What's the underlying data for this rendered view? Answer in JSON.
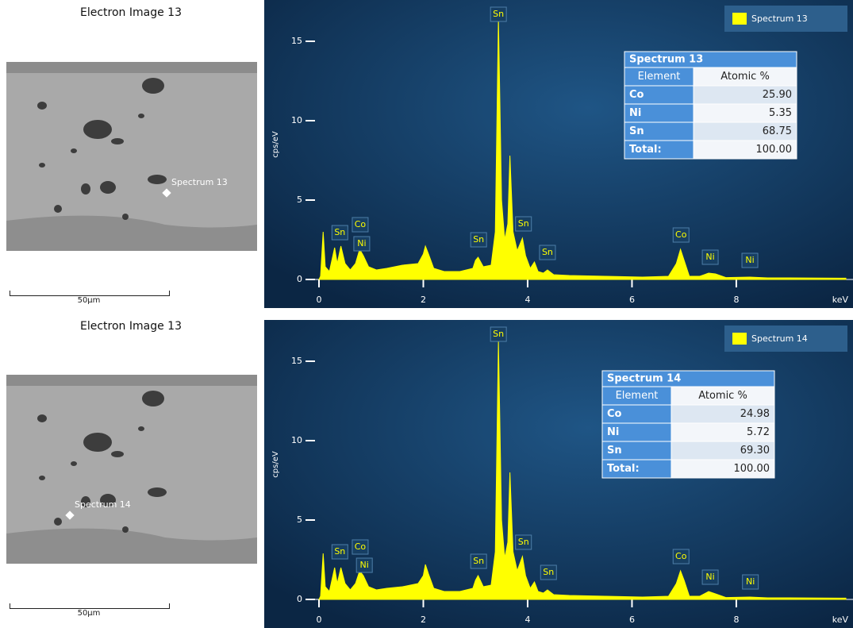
{
  "images": [
    {
      "title": "Electron Image 13",
      "scale": "50µm"
    },
    {
      "title": "Electron Image 13",
      "scale": "50µm"
    }
  ],
  "chart_data": [
    {
      "type": "area",
      "y_label": "cps/eV",
      "x_unit": "keV",
      "x": [
        0,
        0.03,
        0.08,
        0.12,
        0.2,
        0.3,
        0.35,
        0.42,
        0.5,
        0.6,
        0.7,
        0.78,
        0.85,
        0.95,
        1.1,
        1.3,
        1.6,
        1.9,
        2.0,
        2.04,
        2.1,
        2.2,
        2.4,
        2.7,
        2.95,
        3.0,
        3.05,
        3.15,
        3.3,
        3.38,
        3.44,
        3.5,
        3.56,
        3.62,
        3.66,
        3.72,
        3.8,
        3.9,
        3.96,
        4.05,
        4.13,
        4.2,
        4.3,
        4.38,
        4.5,
        4.8,
        5.5,
        6.2,
        6.7,
        6.85,
        6.93,
        7.0,
        7.1,
        7.3,
        7.47,
        7.6,
        7.8,
        8.26,
        8.6,
        9.0,
        10.0,
        10.1
      ],
      "series": [
        {
          "name": "Spectrum 13",
          "color": "#ffff00",
          "values": [
            0,
            0.2,
            3.0,
            0.8,
            0.5,
            2.0,
            1.0,
            2.1,
            1.0,
            0.6,
            1.0,
            1.9,
            1.5,
            0.8,
            0.6,
            0.7,
            0.9,
            1.0,
            1.6,
            2.1,
            1.6,
            0.7,
            0.5,
            0.5,
            0.7,
            1.2,
            1.4,
            0.8,
            0.9,
            3.0,
            16.5,
            5.0,
            2.5,
            3.5,
            7.8,
            3.0,
            1.8,
            2.6,
            1.5,
            0.7,
            1.1,
            0.5,
            0.4,
            0.6,
            0.3,
            0.25,
            0.2,
            0.15,
            0.2,
            1.0,
            1.9,
            1.2,
            0.2,
            0.2,
            0.4,
            0.35,
            0.12,
            0.15,
            0.1,
            0.1,
            0.08,
            0.08
          ]
        }
      ],
      "xlim": [
        0,
        10.1
      ],
      "ylim": [
        -1.8,
        17.6
      ],
      "xticks": [
        0,
        2,
        4,
        6,
        8
      ],
      "yticks": [
        0,
        5,
        10,
        15
      ],
      "annotations": [
        "Sn",
        "Sn",
        "Co",
        "Ni",
        "Sn",
        "Sn",
        "Sn",
        "Co",
        "Ni",
        "Ni"
      ],
      "table": {
        "header": [
          "Element",
          "Atomic %"
        ],
        "rows": [
          [
            "Co",
            "25.90"
          ],
          [
            "Ni",
            "5.35"
          ],
          [
            "Sn",
            "68.75"
          ],
          [
            "Total:",
            "100.00"
          ]
        ]
      }
    },
    {
      "type": "area",
      "y_label": "cps/eV",
      "x_unit": "keV",
      "x": [
        0,
        0.03,
        0.08,
        0.12,
        0.2,
        0.3,
        0.35,
        0.42,
        0.5,
        0.6,
        0.7,
        0.78,
        0.85,
        0.95,
        1.1,
        1.3,
        1.6,
        1.9,
        2.0,
        2.04,
        2.1,
        2.2,
        2.4,
        2.7,
        2.95,
        3.0,
        3.05,
        3.15,
        3.3,
        3.38,
        3.44,
        3.5,
        3.56,
        3.62,
        3.66,
        3.72,
        3.8,
        3.9,
        3.96,
        4.05,
        4.13,
        4.2,
        4.3,
        4.38,
        4.5,
        4.8,
        5.5,
        6.2,
        6.7,
        6.85,
        6.93,
        7.0,
        7.1,
        7.3,
        7.47,
        7.6,
        7.8,
        8.26,
        8.6,
        9.0,
        10.0,
        10.1
      ],
      "series": [
        {
          "name": "Spectrum 14",
          "color": "#ffff00",
          "values": [
            0,
            0.2,
            2.9,
            0.8,
            0.5,
            2.0,
            1.0,
            2.0,
            1.0,
            0.6,
            1.0,
            1.8,
            1.5,
            0.8,
            0.6,
            0.7,
            0.8,
            1.0,
            1.5,
            2.2,
            1.6,
            0.7,
            0.5,
            0.5,
            0.7,
            1.2,
            1.5,
            0.8,
            0.9,
            3.0,
            16.3,
            5.0,
            2.6,
            3.6,
            8.0,
            3.0,
            1.8,
            2.7,
            1.5,
            0.7,
            1.1,
            0.5,
            0.4,
            0.6,
            0.3,
            0.25,
            0.2,
            0.15,
            0.2,
            1.0,
            1.8,
            1.2,
            0.2,
            0.2,
            0.5,
            0.35,
            0.12,
            0.15,
            0.1,
            0.1,
            0.08,
            0.08
          ]
        }
      ],
      "xlim": [
        0,
        10.1
      ],
      "ylim": [
        -1.8,
        17.6
      ],
      "xticks": [
        0,
        2,
        4,
        6,
        8
      ],
      "yticks": [
        0,
        5,
        10,
        15
      ],
      "annotations": [
        "Sn",
        "Sn",
        "Co",
        "Ni",
        "Sn",
        "Sn",
        "Sn",
        "Co",
        "Ni",
        "Ni"
      ],
      "table": {
        "header": [
          "Element",
          "Atomic %"
        ],
        "rows": [
          [
            "Co",
            "24.98"
          ],
          [
            "Ni",
            "5.72"
          ],
          [
            "Sn",
            "69.30"
          ],
          [
            "Total:",
            "100.00"
          ]
        ]
      }
    }
  ]
}
